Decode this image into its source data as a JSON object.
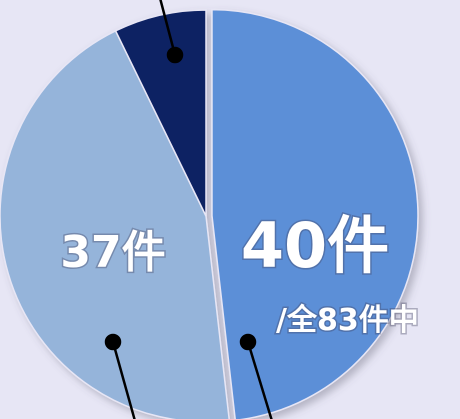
{
  "chart_data": {
    "type": "pie",
    "categories": [
      null,
      null,
      null
    ],
    "values": [
      40,
      37,
      6
    ],
    "value_labels": [
      "40件",
      "37件",
      null
    ],
    "colors": [
      "#5b8fd7",
      "#95b4da",
      "#0e2263"
    ],
    "annotation": "/全83件中"
  }
}
